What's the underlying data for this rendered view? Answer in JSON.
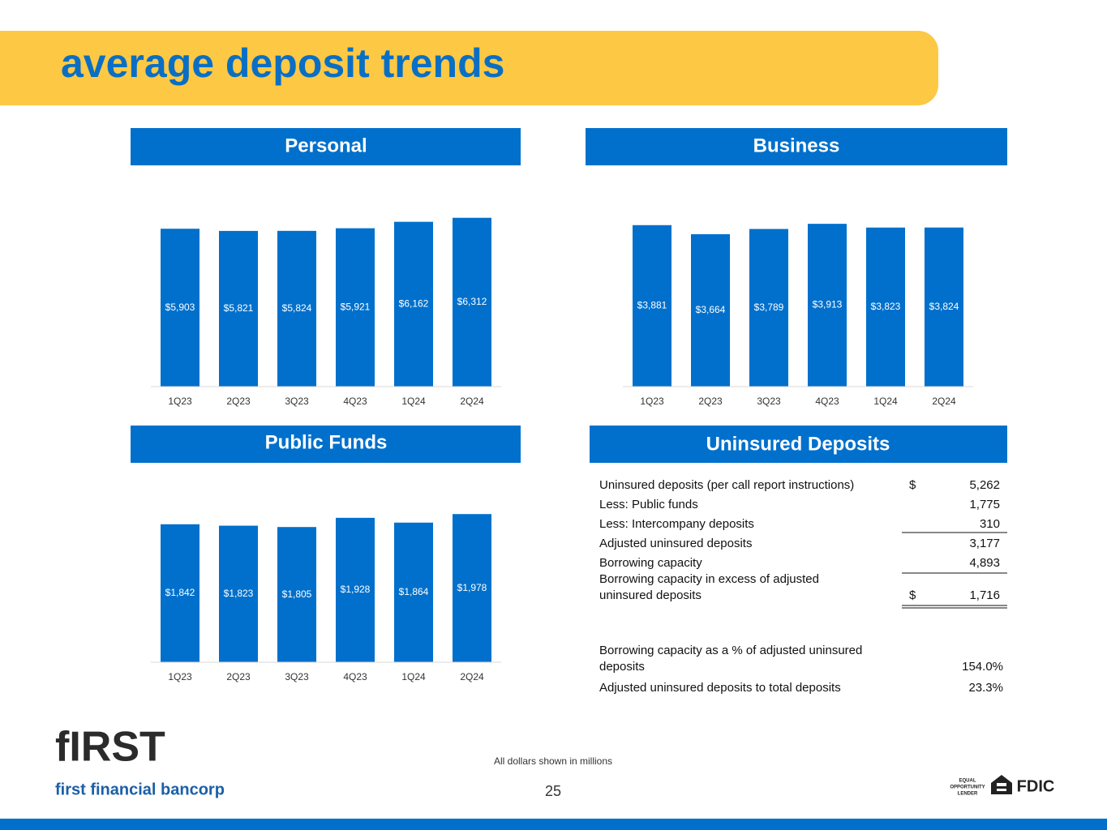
{
  "title": "average deposit trends",
  "chart_data": [
    {
      "type": "bar",
      "title": "Personal",
      "categories": [
        "1Q23",
        "2Q23",
        "3Q23",
        "4Q23",
        "1Q24",
        "2Q24"
      ],
      "values": [
        5903,
        5821,
        5824,
        5921,
        6162,
        6312
      ],
      "value_labels": [
        "$5,903",
        "$5,821",
        "$5,824",
        "$5,921",
        "$6,162",
        "$6,312"
      ],
      "color": "#0070cc",
      "ylim": [
        0,
        7000
      ]
    },
    {
      "type": "bar",
      "title": "Business",
      "categories": [
        "1Q23",
        "2Q23",
        "3Q23",
        "4Q23",
        "1Q24",
        "2Q24"
      ],
      "values": [
        3881,
        3664,
        3789,
        3913,
        3823,
        3824
      ],
      "value_labels": [
        "$3,881",
        "$3,664",
        "$3,789",
        "$3,913",
        "$3,823",
        "$3,824"
      ],
      "color": "#0070cc",
      "ylim": [
        0,
        4500
      ]
    },
    {
      "type": "bar",
      "title": "Public Funds",
      "categories": [
        "1Q23",
        "2Q23",
        "3Q23",
        "4Q23",
        "1Q24",
        "2Q24"
      ],
      "values": [
        1842,
        1823,
        1805,
        1928,
        1864,
        1978
      ],
      "value_labels": [
        "$1,842",
        "$1,823",
        "$1,805",
        "$1,928",
        "$1,864",
        "$1,978"
      ],
      "color": "#0070cc",
      "ylim": [
        0,
        2500
      ]
    }
  ],
  "uninsured": {
    "title": "Uninsured Deposits",
    "rows": [
      {
        "label": [
          "Uninsured deposits (per call report instructions)"
        ],
        "currency": "$",
        "value": "5,262"
      },
      {
        "label": [
          "Less: Public funds"
        ],
        "value": "1,775"
      },
      {
        "label": [
          "Less: Intercompany deposits"
        ],
        "value": "310"
      },
      {
        "label": [
          "Adjusted uninsured deposits"
        ],
        "value": "3,177"
      },
      {
        "label": [
          "Borrowing capacity"
        ],
        "value": "4,893"
      },
      {
        "label": [
          "Borrowing capacity in excess of adjusted",
          "uninsured deposits"
        ],
        "currency": "$",
        "value": "1,716"
      },
      {
        "label": [
          "Borrowing capacity as a % of adjusted uninsured",
          "deposits"
        ],
        "value": "154.0%"
      },
      {
        "label": [
          "Adjusted uninsured deposits to total deposits"
        ],
        "value": "23.3%"
      }
    ]
  },
  "footer": {
    "logo": "fIRST",
    "company": "first financial bancorp",
    "note": "All dollars shown in millions",
    "page": "25",
    "badges": [
      "EQUAL",
      "OPPORTUNITY",
      "LENDER",
      "FDIC"
    ]
  }
}
